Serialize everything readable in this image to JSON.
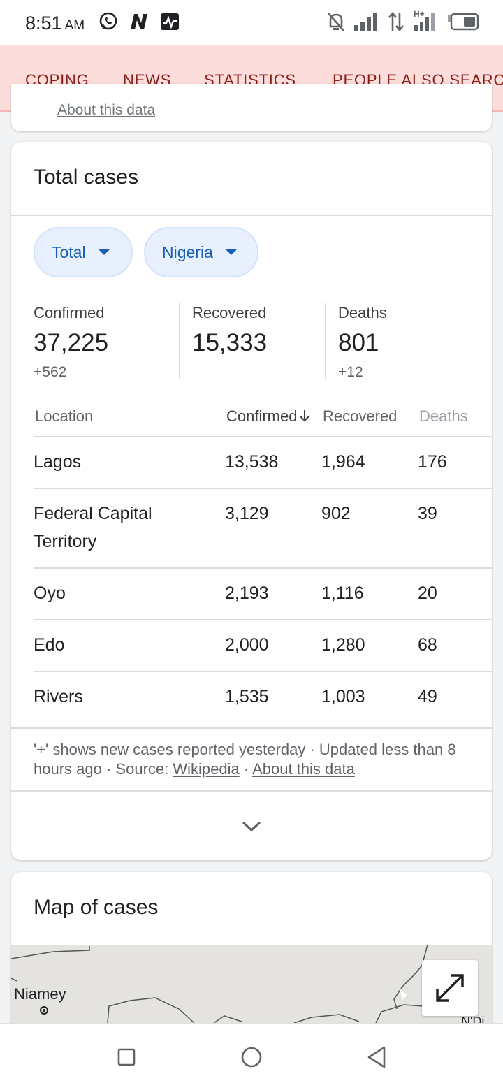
{
  "status_bar": {
    "time": "8:51",
    "ampm": "AM",
    "left_icons": [
      "whatsapp-icon",
      "n-app-icon",
      "activity-icon"
    ],
    "right_icons": [
      "mute-icon",
      "signal-icon",
      "data-arrows-icon",
      "signal-hplus-icon",
      "battery-icon"
    ],
    "network_label": "H+"
  },
  "tabs": [
    {
      "label": "COPING"
    },
    {
      "label": "NEWS"
    },
    {
      "label": "STATISTICS",
      "active": true
    },
    {
      "label": "PEOPLE ALSO SEARCH FOR"
    }
  ],
  "prev_card": {
    "link": "About this data"
  },
  "total_cases": {
    "title": "Total cases",
    "filters": [
      {
        "label": "Total"
      },
      {
        "label": "Nigeria"
      }
    ],
    "stats": {
      "confirmed": {
        "label": "Confirmed",
        "value": "37,225",
        "delta": "+562"
      },
      "recovered": {
        "label": "Recovered",
        "value": "15,333"
      },
      "deaths": {
        "label": "Deaths",
        "value": "801",
        "delta": "+12"
      }
    },
    "table": {
      "headers": {
        "location": "Location",
        "confirmed": "Confirmed",
        "recovered": "Recovered",
        "deaths": "Deaths"
      },
      "sort_icon": "arrow-down-icon",
      "rows": [
        {
          "location": "Lagos",
          "confirmed": "13,538",
          "recovered": "1,964",
          "deaths": "176"
        },
        {
          "location": "Federal Capital Territory",
          "confirmed": "3,129",
          "recovered": "902",
          "deaths": "39"
        },
        {
          "location": "Oyo",
          "confirmed": "2,193",
          "recovered": "1,116",
          "deaths": "20"
        },
        {
          "location": "Edo",
          "confirmed": "2,000",
          "recovered": "1,280",
          "deaths": "68"
        },
        {
          "location": "Rivers",
          "confirmed": "1,535",
          "recovered": "1,003",
          "deaths": "49"
        }
      ]
    },
    "footnote": {
      "text_1": "'+' shows new cases reported yesterday · Updated less than 8 hours ago",
      "sep_1": " · ",
      "source_label": "Source: ",
      "source_link": "Wikipedia",
      "sep_2": " · ",
      "about_link": "About this data"
    },
    "expand_icon": "chevron-down-icon"
  },
  "map_card": {
    "title": "Map of cases",
    "labels": [
      "Niamey",
      "N'Dj"
    ],
    "fullscreen_icon": "expand-icon"
  },
  "nav_bar": {
    "icons": [
      "recents-square-icon",
      "home-circle-icon",
      "back-triangle-icon"
    ]
  },
  "colors": {
    "tab_bg": "#fddcdc",
    "tab_text": "#8a1f17",
    "tab_indicator": "#d93025",
    "chip_bg": "#e8f0fe",
    "chip_text": "#1a5fb4"
  }
}
